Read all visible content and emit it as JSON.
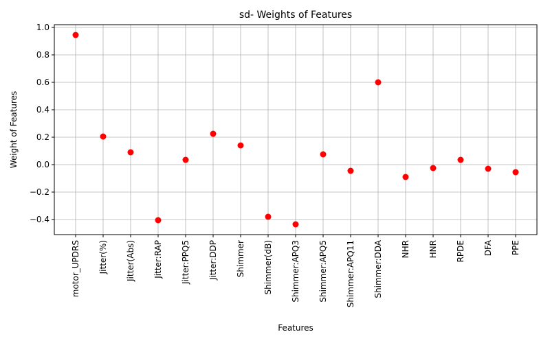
{
  "chart_data": {
    "type": "scatter",
    "title": "sd- Weights of Features",
    "xlabel": "Features",
    "ylabel": "Weight of Features",
    "categories": [
      "motor_UPDRS",
      "Jitter(%)",
      "Jitter(Abs)",
      "Jitter:RAP",
      "Jitter:PPQ5",
      "Jitter:DDP",
      "Shimmer",
      "Shimmer(dB)",
      "Shimmer:APQ3",
      "Shimmer:APQ5",
      "Shimmer:APQ11",
      "Shimmer:DDA",
      "NHR",
      "HNR",
      "RPDE",
      "DFA",
      "PPE"
    ],
    "values": [
      0.945,
      0.205,
      0.09,
      -0.405,
      0.035,
      0.225,
      0.14,
      -0.38,
      -0.435,
      0.075,
      -0.045,
      0.6,
      -0.09,
      -0.025,
      0.035,
      -0.03,
      -0.055
    ],
    "yticks": [
      "1.0",
      "0.8",
      "0.6",
      "0.4",
      "0.2",
      "0.0",
      "−0.2",
      "−0.4"
    ],
    "ylim": [
      -0.51,
      1.02
    ],
    "grid": true,
    "marker_color": "#ff0000"
  }
}
